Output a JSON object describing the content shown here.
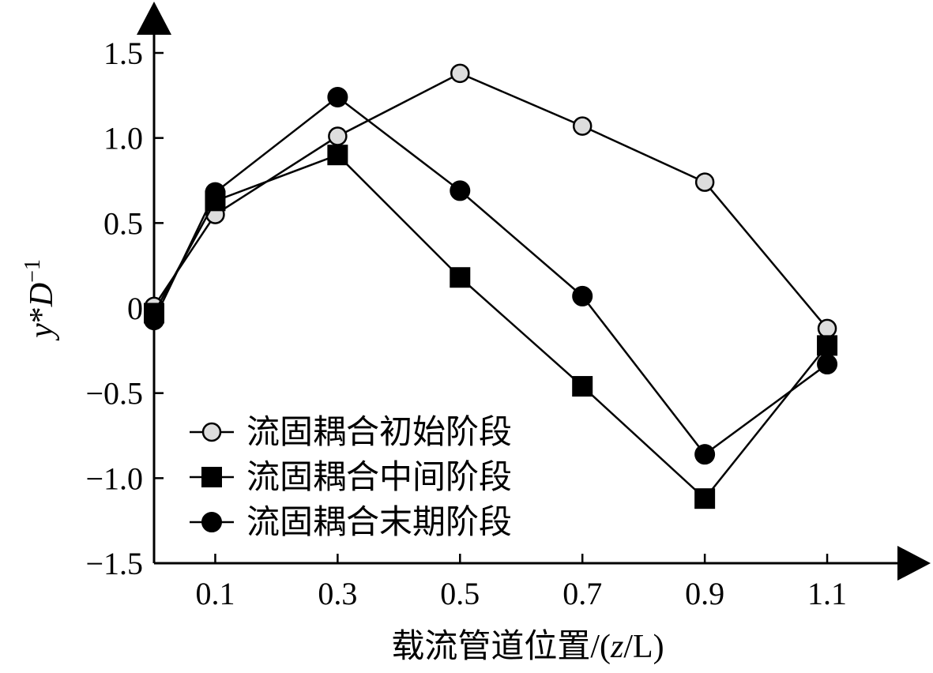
{
  "chart_data": {
    "type": "line",
    "xlabel_prefix": "载流管道位置/(",
    "xlabel_var": "z",
    "xlabel_suffix": "/L)",
    "ylabel_var1": "y",
    "ylabel_star": "*",
    "ylabel_var2": "D",
    "ylabel_exp": "−1",
    "xlim": [
      0.0,
      1.22
    ],
    "ylim": [
      -1.5,
      1.5
    ],
    "xticks": [
      0.1,
      0.3,
      0.5,
      0.7,
      0.9,
      1.1
    ],
    "xtick_labels": [
      "0.1",
      "0.3",
      "0.5",
      "0.7",
      "0.9",
      "1.1"
    ],
    "yticks": [
      1.5,
      1.0,
      0.5,
      0,
      -0.5,
      -1.0,
      -1.5
    ],
    "ytick_labels": [
      "1.5",
      "1.0",
      "0.5",
      "0",
      "−0.5",
      "−1.0",
      "−1.5"
    ],
    "grid": false,
    "legend_position": "bottom-left",
    "series": [
      {
        "name": "流固耦合初始阶段",
        "marker": "open-circle",
        "fill": "#dddddd",
        "x": [
          0.0,
          0.1,
          0.3,
          0.5,
          0.7,
          0.9,
          1.1
        ],
        "y": [
          0.01,
          0.55,
          1.01,
          1.38,
          1.07,
          0.74,
          -0.12
        ]
      },
      {
        "name": "流固耦合中间阶段",
        "marker": "filled-square",
        "fill": "#000000",
        "x": [
          0.0,
          0.1,
          0.3,
          0.5,
          0.7,
          0.9,
          1.1
        ],
        "y": [
          -0.03,
          0.63,
          0.9,
          0.18,
          -0.46,
          -1.12,
          -0.22
        ]
      },
      {
        "name": "流固耦合末期阶段",
        "marker": "filled-circle",
        "fill": "#000000",
        "x": [
          0.0,
          0.1,
          0.3,
          0.5,
          0.7,
          0.9,
          1.1
        ],
        "y": [
          -0.07,
          0.68,
          1.24,
          0.69,
          0.07,
          -0.86,
          -0.33
        ]
      }
    ]
  }
}
